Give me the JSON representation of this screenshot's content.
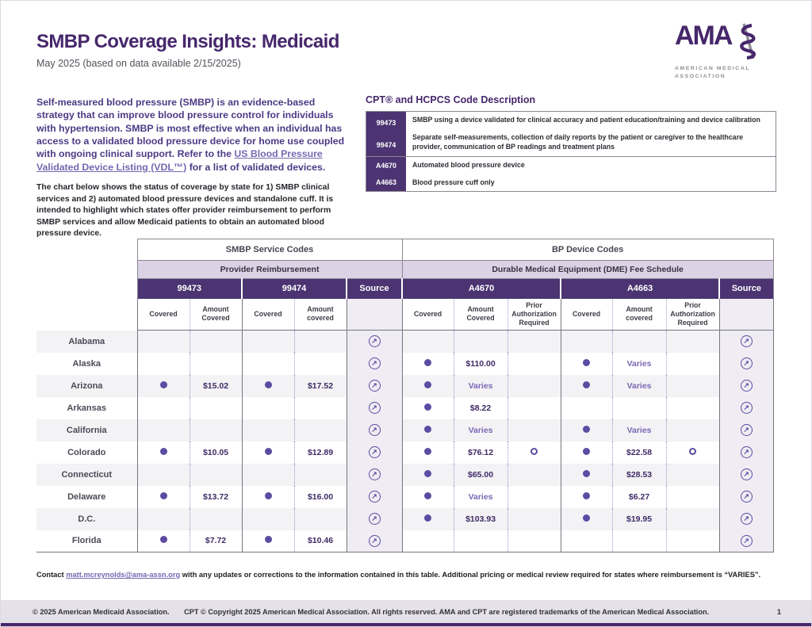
{
  "colors": {
    "brand_purple": "#46276b",
    "header_purple": "#4b3471",
    "lavender_band": "#dbd2e6",
    "accent_dot": "#5c4ba3",
    "varies_text": "#7b68b5",
    "link_purple": "#7668b2"
  },
  "header": {
    "title": "SMBP Coverage Insights: Medicaid",
    "subtitle": "May 2025 (based on data available 2/15/2025)",
    "logo": {
      "name": "AMA",
      "tagline_line1": "AMERICAN MEDICAL",
      "tagline_line2": "ASSOCIATION"
    }
  },
  "intro": {
    "lead_before_link": "Self-measured blood pressure (SMBP) is an evidence-based strategy that can improve blood pressure control for individuals with hypertension. SMBP is most effective when an individual has access to a validated blood pressure device for home use coupled with ongoing clinical support. Refer to the ",
    "lead_link": "US Blood Pressure Validated Device Listing (VDL™)",
    "lead_after_link": " for a list of validated devices.",
    "body": "The chart below shows the status of coverage by state for 1) SMBP clinical services and 2) automated blood pressure devices and standalone cuff. It is intended to highlight which states offer provider reimbursement to perform SMBP services and allow Medicaid patients to obtain an automated blood pressure device."
  },
  "code_descriptions": {
    "heading": "CPT® and HCPCS Code Description",
    "rows": [
      {
        "code": "99473",
        "description": "SMBP using a device validated for clinical accuracy and patient education/training and device calibration"
      },
      {
        "code": "99474",
        "description": "Separate self-measurements, collection of daily reports by the patient or caregiver to the healthcare provider, communication of BP readings and treatment plans"
      },
      {
        "code": "A4670",
        "description": "Automated blood pressure device"
      },
      {
        "code": "A4663",
        "description": "Blood pressure cuff only"
      }
    ]
  },
  "coverage_table": {
    "group_headers": [
      "SMBP Service Codes",
      "BP Device Codes"
    ],
    "band_headers": [
      "Provider Reimbursement",
      "Durable Medical Equipment (DME) Fee Schedule"
    ],
    "code_headers": [
      "99473",
      "99474",
      "Source",
      "A4670",
      "A4663",
      "Source"
    ],
    "sub_headers": [
      "Covered",
      "Amount Covered",
      "Covered",
      "Amount covered",
      "",
      "Covered",
      "Amount Covered",
      "Prior Authorization Required",
      "Covered",
      "Amount covered",
      "Prior Authorization Required",
      ""
    ],
    "rows": [
      {
        "state": "Alabama",
        "c99473": {
          "covered": false,
          "amount": ""
        },
        "c99474": {
          "covered": false,
          "amount": ""
        },
        "a4670": {
          "covered": false,
          "amount": "",
          "prior_auth": false
        },
        "a4663": {
          "covered": false,
          "amount": "",
          "prior_auth": false
        }
      },
      {
        "state": "Alaska",
        "c99473": {
          "covered": false,
          "amount": ""
        },
        "c99474": {
          "covered": false,
          "amount": ""
        },
        "a4670": {
          "covered": true,
          "amount": "$110.00",
          "prior_auth": false
        },
        "a4663": {
          "covered": true,
          "amount": "Varies",
          "prior_auth": false
        }
      },
      {
        "state": "Arizona",
        "c99473": {
          "covered": true,
          "amount": "$15.02"
        },
        "c99474": {
          "covered": true,
          "amount": "$17.52"
        },
        "a4670": {
          "covered": true,
          "amount": "Varies",
          "prior_auth": false
        },
        "a4663": {
          "covered": true,
          "amount": "Varies",
          "prior_auth": false
        }
      },
      {
        "state": "Arkansas",
        "c99473": {
          "covered": false,
          "amount": ""
        },
        "c99474": {
          "covered": false,
          "amount": ""
        },
        "a4670": {
          "covered": true,
          "amount": "$8.22",
          "prior_auth": false
        },
        "a4663": {
          "covered": false,
          "amount": "",
          "prior_auth": false
        }
      },
      {
        "state": "California",
        "c99473": {
          "covered": false,
          "amount": ""
        },
        "c99474": {
          "covered": false,
          "amount": ""
        },
        "a4670": {
          "covered": true,
          "amount": "Varies",
          "prior_auth": false
        },
        "a4663": {
          "covered": true,
          "amount": "Varies",
          "prior_auth": false
        }
      },
      {
        "state": "Colorado",
        "c99473": {
          "covered": true,
          "amount": "$10.05"
        },
        "c99474": {
          "covered": true,
          "amount": "$12.89"
        },
        "a4670": {
          "covered": true,
          "amount": "$76.12",
          "prior_auth": true
        },
        "a4663": {
          "covered": true,
          "amount": "$22.58",
          "prior_auth": true
        }
      },
      {
        "state": "Connecticut",
        "c99473": {
          "covered": false,
          "amount": ""
        },
        "c99474": {
          "covered": false,
          "amount": ""
        },
        "a4670": {
          "covered": true,
          "amount": "$65.00",
          "prior_auth": false
        },
        "a4663": {
          "covered": true,
          "amount": "$28.53",
          "prior_auth": false
        }
      },
      {
        "state": "Delaware",
        "c99473": {
          "covered": true,
          "amount": "$13.72"
        },
        "c99474": {
          "covered": true,
          "amount": "$16.00"
        },
        "a4670": {
          "covered": true,
          "amount": "Varies",
          "prior_auth": false
        },
        "a4663": {
          "covered": true,
          "amount": "$6.27",
          "prior_auth": false
        }
      },
      {
        "state": "D.C.",
        "c99473": {
          "covered": false,
          "amount": ""
        },
        "c99474": {
          "covered": false,
          "amount": ""
        },
        "a4670": {
          "covered": true,
          "amount": "$103.93",
          "prior_auth": false
        },
        "a4663": {
          "covered": true,
          "amount": "$19.95",
          "prior_auth": false
        }
      },
      {
        "state": "Florida",
        "c99473": {
          "covered": true,
          "amount": "$7.72"
        },
        "c99474": {
          "covered": true,
          "amount": "$10.46"
        },
        "a4670": {
          "covered": false,
          "amount": "",
          "prior_auth": false
        },
        "a4663": {
          "covered": false,
          "amount": "",
          "prior_auth": false
        }
      }
    ]
  },
  "contact": {
    "before": "Contact ",
    "email": "matt.mcreynolds@ama-assn.org",
    "after": " with any updates or corrections to the information contained in this table. Additional pricing or medical review required for states where reimbursement is “VARIES”."
  },
  "footer": {
    "copyright_1": "© 2025 American Medicaid Association.",
    "copyright_2": "CPT © Copyright 2025 American Medical Association. All rights reserved. AMA and CPT are registered trademarks of the American Medical Association.",
    "page_number": "1"
  }
}
